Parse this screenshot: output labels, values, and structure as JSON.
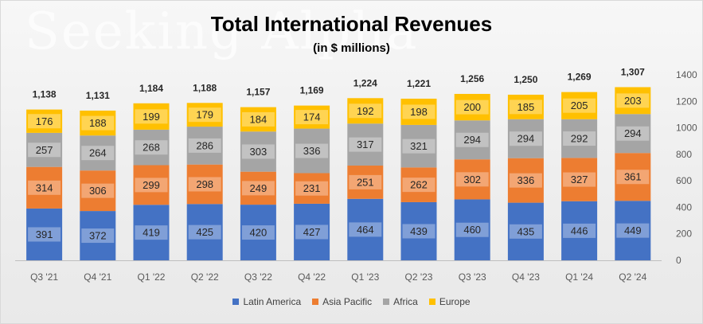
{
  "watermark": "Seeking Alpha",
  "chart_data": {
    "type": "bar",
    "stacked": true,
    "title": "Total International Revenues",
    "subtitle": "(in $ millions)",
    "categories": [
      "Q3 '21",
      "Q4 '21",
      "Q1 '22",
      "Q2 '22",
      "Q3 '22",
      "Q4 '22",
      "Q1 '23",
      "Q2 '23",
      "Q3 '23",
      "Q4 '23",
      "Q1 '24",
      "Q2 '24"
    ],
    "series": [
      {
        "name": "Latin America",
        "color": "#4472c4",
        "values": [
          391,
          372,
          419,
          425,
          420,
          427,
          464,
          439,
          460,
          435,
          446,
          449
        ]
      },
      {
        "name": "Asia Pacific",
        "color": "#ed7d31",
        "values": [
          314,
          306,
          299,
          298,
          249,
          231,
          251,
          262,
          302,
          336,
          327,
          361
        ]
      },
      {
        "name": "Africa",
        "color": "#a5a5a5",
        "values": [
          257,
          264,
          268,
          286,
          303,
          336,
          317,
          321,
          294,
          294,
          292,
          294
        ]
      },
      {
        "name": "Europe",
        "color": "#ffc000",
        "values": [
          176,
          188,
          199,
          179,
          184,
          174,
          192,
          198,
          200,
          185,
          205,
          203
        ]
      }
    ],
    "totals": [
      1138,
      1131,
      1184,
      1188,
      1157,
      1169,
      1224,
      1221,
      1256,
      1250,
      1269,
      1307
    ],
    "total_labels": [
      "1,138",
      "1,131",
      "1,184",
      "1,188",
      "1,157",
      "1,169",
      "1,224",
      "1,221",
      "1,256",
      "1,250",
      "1,269",
      "1,307"
    ],
    "y_ticks": [
      0,
      200,
      400,
      600,
      800,
      1000,
      1200,
      1400
    ],
    "ylim": [
      0,
      1400
    ],
    "y_axis_position": "right",
    "xlabel": "",
    "ylabel": "",
    "legend_position": "bottom",
    "grid": false
  }
}
